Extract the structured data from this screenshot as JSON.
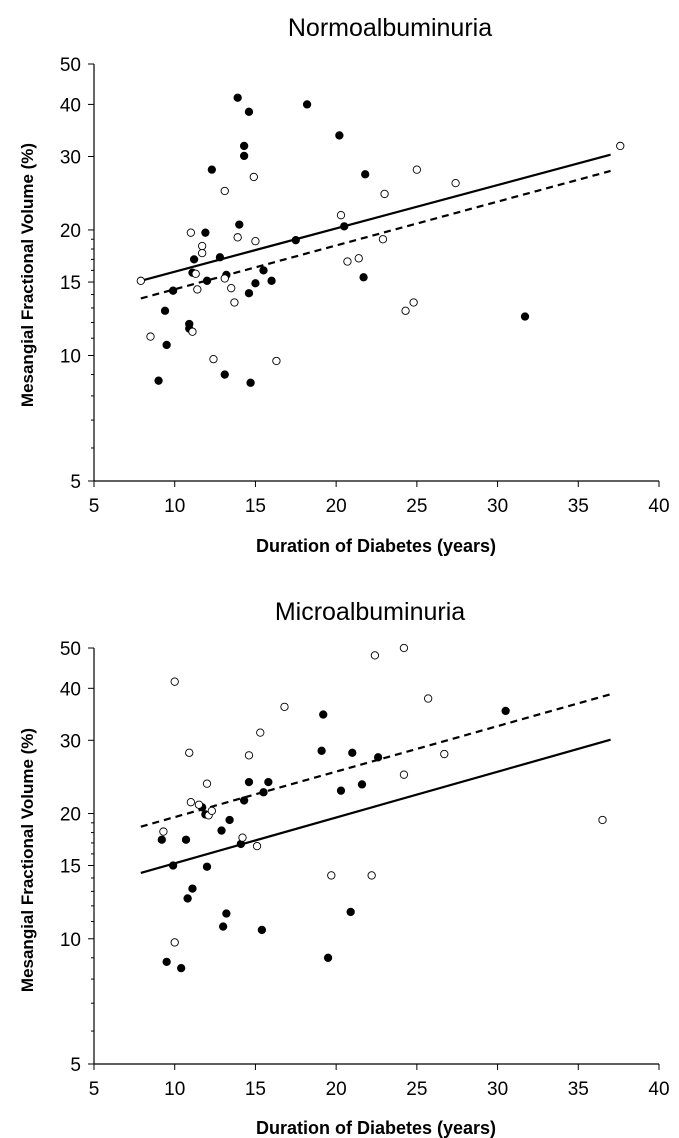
{
  "chart_data": [
    {
      "type": "scatter",
      "title": "Normoalbuminuria",
      "xlabel": "Duration of Diabetes (years)",
      "ylabel": "Mesangial Fractional Volume (%)",
      "xlim": [
        5,
        40
      ],
      "ylim": [
        5,
        50
      ],
      "yscale": "log",
      "xticks": [
        "5",
        "10",
        "15",
        "20",
        "25",
        "30",
        "35",
        "40"
      ],
      "yticks": [
        "5",
        "10",
        "15",
        "20",
        "30",
        "40",
        "50"
      ],
      "grid": false,
      "legend": "none",
      "series": [
        {
          "marker": "filled-circle",
          "points": [
            [
              9.0,
              8.7
            ],
            [
              9.4,
              12.8
            ],
            [
              9.5,
              10.6
            ],
            [
              9.9,
              14.3
            ],
            [
              10.9,
              11.9
            ],
            [
              10.9,
              11.6
            ],
            [
              11.1,
              15.8
            ],
            [
              11.2,
              17.0
            ],
            [
              11.9,
              19.7
            ],
            [
              12.0,
              15.1
            ],
            [
              12.3,
              27.9
            ],
            [
              12.8,
              17.2
            ],
            [
              13.1,
              9.0
            ],
            [
              13.2,
              15.6
            ],
            [
              13.9,
              41.5
            ],
            [
              14.0,
              20.6
            ],
            [
              14.3,
              31.8
            ],
            [
              14.3,
              30.1
            ],
            [
              14.6,
              38.4
            ],
            [
              14.6,
              14.1
            ],
            [
              14.7,
              8.6
            ],
            [
              15.0,
              14.9
            ],
            [
              15.5,
              16.0
            ],
            [
              16.0,
              15.1
            ],
            [
              17.5,
              18.9
            ],
            [
              18.2,
              40.0
            ],
            [
              20.2,
              33.7
            ],
            [
              20.5,
              20.4
            ],
            [
              21.7,
              15.4
            ],
            [
              21.8,
              27.2
            ],
            [
              31.7,
              12.4
            ]
          ]
        },
        {
          "marker": "open-circle",
          "points": [
            [
              7.9,
              15.1
            ],
            [
              8.5,
              11.1
            ],
            [
              11.0,
              19.7
            ],
            [
              11.1,
              11.4
            ],
            [
              11.3,
              15.7
            ],
            [
              11.4,
              14.4
            ],
            [
              11.7,
              18.3
            ],
            [
              11.7,
              17.6
            ],
            [
              12.4,
              9.8
            ],
            [
              13.1,
              24.8
            ],
            [
              13.1,
              15.3
            ],
            [
              13.5,
              14.5
            ],
            [
              13.7,
              13.4
            ],
            [
              13.9,
              19.2
            ],
            [
              14.9,
              26.8
            ],
            [
              15.0,
              18.8
            ],
            [
              16.3,
              9.7
            ],
            [
              20.3,
              21.7
            ],
            [
              20.7,
              16.8
            ],
            [
              21.4,
              17.1
            ],
            [
              22.9,
              19.0
            ],
            [
              23.0,
              24.4
            ],
            [
              24.3,
              12.8
            ],
            [
              24.8,
              13.4
            ],
            [
              25.0,
              27.9
            ],
            [
              27.4,
              25.9
            ],
            [
              37.6,
              31.8
            ]
          ]
        }
      ],
      "fit_lines": [
        {
          "style": "solid",
          "x": [
            7.9,
            37.0
          ],
          "y": [
            15.1,
            30.3
          ]
        },
        {
          "style": "dashed",
          "x": [
            7.9,
            37.0
          ],
          "y": [
            13.7,
            27.7
          ]
        }
      ]
    },
    {
      "type": "scatter",
      "title": "Microalbuminuria",
      "xlabel": "Duration of Diabetes (years)",
      "ylabel": "Mesangial Fractional Volume (%)",
      "xlim": [
        5,
        40
      ],
      "ylim": [
        5,
        50
      ],
      "yscale": "log",
      "xticks": [
        "5",
        "10",
        "15",
        "20",
        "25",
        "30",
        "35",
        "40"
      ],
      "yticks": [
        "5",
        "10",
        "15",
        "20",
        "30",
        "40",
        "50"
      ],
      "grid": false,
      "legend": "none",
      "series": [
        {
          "marker": "filled-circle",
          "points": [
            [
              9.2,
              17.3
            ],
            [
              9.5,
              8.8
            ],
            [
              9.9,
              15.0
            ],
            [
              10.4,
              8.5
            ],
            [
              10.7,
              17.3
            ],
            [
              10.8,
              12.5
            ],
            [
              11.1,
              13.2
            ],
            [
              11.7,
              20.7
            ],
            [
              11.9,
              19.9
            ],
            [
              12.0,
              14.9
            ],
            [
              12.9,
              18.2
            ],
            [
              13.0,
              10.7
            ],
            [
              13.2,
              11.5
            ],
            [
              13.4,
              19.3
            ],
            [
              14.1,
              16.9
            ],
            [
              14.3,
              21.5
            ],
            [
              14.6,
              23.8
            ],
            [
              15.4,
              10.5
            ],
            [
              15.5,
              22.5
            ],
            [
              15.8,
              23.8
            ],
            [
              19.1,
              28.3
            ],
            [
              19.2,
              34.6
            ],
            [
              19.5,
              9.0
            ],
            [
              20.3,
              22.7
            ],
            [
              20.9,
              11.6
            ],
            [
              21.0,
              28.0
            ],
            [
              21.6,
              23.5
            ],
            [
              22.6,
              27.3
            ],
            [
              30.5,
              35.3
            ]
          ]
        },
        {
          "marker": "open-circle",
          "points": [
            [
              9.3,
              18.1
            ],
            [
              10.0,
              9.8
            ],
            [
              10.0,
              41.5
            ],
            [
              10.9,
              28.0
            ],
            [
              11.0,
              21.3
            ],
            [
              11.5,
              21.0
            ],
            [
              12.0,
              23.6
            ],
            [
              12.1,
              19.8
            ],
            [
              12.3,
              20.3
            ],
            [
              14.2,
              17.5
            ],
            [
              14.6,
              27.6
            ],
            [
              15.1,
              16.7
            ],
            [
              15.3,
              31.3
            ],
            [
              16.8,
              36.1
            ],
            [
              19.7,
              14.2
            ],
            [
              22.2,
              14.2
            ],
            [
              22.4,
              48.0
            ],
            [
              24.2,
              24.8
            ],
            [
              24.2,
              50.0
            ],
            [
              25.7,
              37.8
            ],
            [
              26.7,
              27.8
            ],
            [
              36.5,
              19.3
            ]
          ]
        }
      ],
      "fit_lines": [
        {
          "style": "solid",
          "x": [
            7.9,
            37.0
          ],
          "y": [
            14.4,
            30.1
          ]
        },
        {
          "style": "dashed",
          "x": [
            7.9,
            37.0
          ],
          "y": [
            18.6,
            38.7
          ]
        }
      ]
    }
  ]
}
